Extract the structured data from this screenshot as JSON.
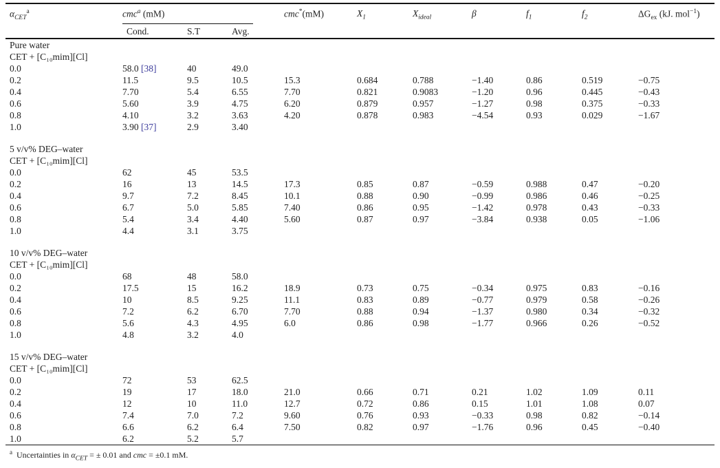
{
  "colors": {
    "citation_link": "#3c3c9b",
    "text": "#222222",
    "rule": "#141414"
  },
  "table": {
    "header": {
      "alpha_symbol": "α",
      "alpha_sub": "CET",
      "alpha_sup": "a",
      "cmc_label": "cmc",
      "cmc_sup": "a",
      "cmc_unit": " (mM)",
      "cond": "Cond.",
      "st": "S.T",
      "avg": "Avg.",
      "cmc_star_label": "cmc",
      "cmc_star_sup": "*",
      "cmc_star_unit": "(mM)",
      "x1_base": "X",
      "x1_sub": "1",
      "x_ideal_base": "X",
      "x_ideal_sub": "ideal",
      "beta": "β",
      "f1_base": "f",
      "f1_sub": "1",
      "f2_base": "f",
      "f2_sub": "2",
      "dg_base": "ΔG",
      "dg_sub": "ex",
      "dg_unit_pre": " (kJ. mol",
      "dg_unit_sup": "−1",
      "dg_unit_post": ")"
    },
    "sections": [
      {
        "title": "Pure water",
        "system": "CET + [C₁₀mim][Cl]",
        "rows": [
          {
            "alpha": "0.0",
            "cond": "58.0",
            "cite": "[38]",
            "st": "40",
            "avg": "49.0",
            "cmc_star": "",
            "x1": "",
            "x_ideal": "",
            "beta": "",
            "f1": "",
            "f2": "",
            "dg_ex": ""
          },
          {
            "alpha": "0.2",
            "cond": "11.5",
            "cite": "",
            "st": "9.5",
            "avg": "10.5",
            "cmc_star": "15.3",
            "x1": "0.684",
            "x_ideal": "0.788",
            "beta": "−1.40",
            "f1": "0.86",
            "f2": "0.519",
            "dg_ex": "−0.75"
          },
          {
            "alpha": "0.4",
            "cond": "7.70",
            "cite": "",
            "st": "5.4",
            "avg": "6.55",
            "cmc_star": "7.70",
            "x1": "0.821",
            "x_ideal": "0.9083",
            "beta": "−1.20",
            "f1": "0.96",
            "f2": "0.445",
            "dg_ex": "−0.43"
          },
          {
            "alpha": "0.6",
            "cond": "5.60",
            "cite": "",
            "st": "3.9",
            "avg": "4.75",
            "cmc_star": "6.20",
            "x1": "0.879",
            "x_ideal": "0.957",
            "beta": "−1.27",
            "f1": "0.98",
            "f2": "0.375",
            "dg_ex": "−0.33"
          },
          {
            "alpha": "0.8",
            "cond": "4.10",
            "cite": "",
            "st": "3.2",
            "avg": "3.63",
            "cmc_star": "4.20",
            "x1": "0.878",
            "x_ideal": "0.983",
            "beta": "−4.54",
            "f1": "0.93",
            "f2": "0.029",
            "dg_ex": "−1.67"
          },
          {
            "alpha": "1.0",
            "cond": "3.90",
            "cite": "[37]",
            "st": "2.9",
            "avg": "3.40",
            "cmc_star": "",
            "x1": "",
            "x_ideal": "",
            "beta": "",
            "f1": "",
            "f2": "",
            "dg_ex": ""
          }
        ]
      },
      {
        "title": "5 v/v% DEG–water",
        "system": "CET + [C₁₀mim][Cl]",
        "rows": [
          {
            "alpha": "0.0",
            "cond": "62",
            "cite": "",
            "st": "45",
            "avg": "53.5",
            "cmc_star": "",
            "x1": "",
            "x_ideal": "",
            "beta": "",
            "f1": "",
            "f2": "",
            "dg_ex": ""
          },
          {
            "alpha": "0.2",
            "cond": "16",
            "cite": "",
            "st": "13",
            "avg": "14.5",
            "cmc_star": "17.3",
            "x1": "0.85",
            "x_ideal": "0.87",
            "beta": "−0.59",
            "f1": "0.988",
            "f2": "0.47",
            "dg_ex": "−0.20"
          },
          {
            "alpha": "0.4",
            "cond": "9.7",
            "cite": "",
            "st": "7.2",
            "avg": "8.45",
            "cmc_star": "10.1",
            "x1": "0.88",
            "x_ideal": "0.90",
            "beta": "−0.99",
            "f1": "0.986",
            "f2": "0.46",
            "dg_ex": "−0.25"
          },
          {
            "alpha": "0.6",
            "cond": "6.7",
            "cite": "",
            "st": "5.0",
            "avg": "5.85",
            "cmc_star": "7.40",
            "x1": "0.86",
            "x_ideal": "0.95",
            "beta": "−1.42",
            "f1": "0.978",
            "f2": "0.43",
            "dg_ex": "−0.33"
          },
          {
            "alpha": "0.8",
            "cond": "5.4",
            "cite": "",
            "st": "3.4",
            "avg": "4.40",
            "cmc_star": "5.60",
            "x1": "0.87",
            "x_ideal": "0.97",
            "beta": "−3.84",
            "f1": "0.938",
            "f2": "0.05",
            "dg_ex": "−1.06"
          },
          {
            "alpha": "1.0",
            "cond": "4.4",
            "cite": "",
            "st": "3.1",
            "avg": "3.75",
            "cmc_star": "",
            "x1": "",
            "x_ideal": "",
            "beta": "",
            "f1": "",
            "f2": "",
            "dg_ex": ""
          }
        ]
      },
      {
        "title": "10 v/v% DEG–water",
        "system": "CET + [C₁₀mim][Cl]",
        "rows": [
          {
            "alpha": "0.0",
            "cond": "68",
            "cite": "",
            "st": "48",
            "avg": "58.0",
            "cmc_star": "",
            "x1": "",
            "x_ideal": "",
            "beta": "",
            "f1": "",
            "f2": "",
            "dg_ex": ""
          },
          {
            "alpha": "0.2",
            "cond": "17.5",
            "cite": "",
            "st": "15",
            "avg": "16.2",
            "cmc_star": "18.9",
            "x1": "0.73",
            "x_ideal": "0.75",
            "beta": "−0.34",
            "f1": "0.975",
            "f2": "0.83",
            "dg_ex": "−0.16"
          },
          {
            "alpha": "0.4",
            "cond": "10",
            "cite": "",
            "st": "8.5",
            "avg": "9.25",
            "cmc_star": "11.1",
            "x1": "0.83",
            "x_ideal": "0.89",
            "beta": "−0.77",
            "f1": "0.979",
            "f2": "0.58",
            "dg_ex": "−0.26"
          },
          {
            "alpha": "0.6",
            "cond": "7.2",
            "cite": "",
            "st": "6.2",
            "avg": "6.70",
            "cmc_star": "7.70",
            "x1": "0.88",
            "x_ideal": "0.94",
            "beta": "−1.37",
            "f1": "0.980",
            "f2": "0.34",
            "dg_ex": "−0.32"
          },
          {
            "alpha": "0.8",
            "cond": "5.6",
            "cite": "",
            "st": "4.3",
            "avg": "4.95",
            "cmc_star": "6.0",
            "x1": "0.86",
            "x_ideal": "0.98",
            "beta": "−1.77",
            "f1": "0.966",
            "f2": "0.26",
            "dg_ex": "−0.52"
          },
          {
            "alpha": "1.0",
            "cond": "4.8",
            "cite": "",
            "st": "3.2",
            "avg": "4.0",
            "cmc_star": "",
            "x1": "",
            "x_ideal": "",
            "beta": "",
            "f1": "",
            "f2": "",
            "dg_ex": ""
          }
        ]
      },
      {
        "title": "15 v/v% DEG–water",
        "system": "CET + [C₁₀mim][Cl]",
        "rows": [
          {
            "alpha": "0.0",
            "cond": "72",
            "cite": "",
            "st": "53",
            "avg": "62.5",
            "cmc_star": "",
            "x1": "",
            "x_ideal": "",
            "beta": "",
            "f1": "",
            "f2": "",
            "dg_ex": ""
          },
          {
            "alpha": "0.2",
            "cond": "19",
            "cite": "",
            "st": "17",
            "avg": "18.0",
            "cmc_star": "21.0",
            "x1": "0.66",
            "x_ideal": "0.71",
            "beta": "0.21",
            "f1": "1.02",
            "f2": "1.09",
            "dg_ex": "0.11"
          },
          {
            "alpha": "0.4",
            "cond": "12",
            "cite": "",
            "st": "10",
            "avg": "11.0",
            "cmc_star": "12.7",
            "x1": "0.72",
            "x_ideal": "0.86",
            "beta": "0.15",
            "f1": "1.01",
            "f2": "1.08",
            "dg_ex": "0.07"
          },
          {
            "alpha": "0.6",
            "cond": "7.4",
            "cite": "",
            "st": "7.0",
            "avg": "7.2",
            "cmc_star": "9.60",
            "x1": "0.76",
            "x_ideal": "0.93",
            "beta": "−0.33",
            "f1": "0.98",
            "f2": "0.82",
            "dg_ex": "−0.14"
          },
          {
            "alpha": "0.8",
            "cond": "6.6",
            "cite": "",
            "st": "6.2",
            "avg": "6.4",
            "cmc_star": "7.50",
            "x1": "0.82",
            "x_ideal": "0.97",
            "beta": "−1.76",
            "f1": "0.96",
            "f2": "0.45",
            "dg_ex": "−0.40"
          },
          {
            "alpha": "1.0",
            "cond": "6.2",
            "cite": "",
            "st": "5.2",
            "avg": "5.7",
            "cmc_star": "",
            "x1": "",
            "x_ideal": "",
            "beta": "",
            "f1": "",
            "f2": "",
            "dg_ex": ""
          }
        ]
      }
    ],
    "footnote": {
      "marker": "a",
      "text_pre": "Uncertainties in ",
      "alpha_symbol": "α",
      "alpha_sub": "CET",
      "text_mid": " = ± 0.01 and ",
      "cmc_label": "cmc",
      "text_post": " = ±0.1 mM."
    }
  }
}
